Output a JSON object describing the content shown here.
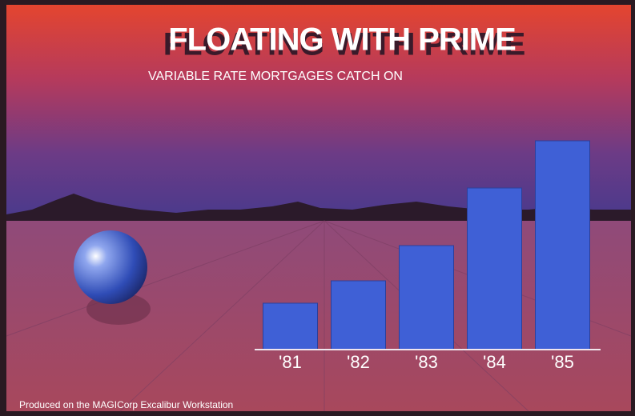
{
  "chart_data": {
    "type": "bar",
    "title": "FLOATING WITH PRIME",
    "subtitle": "VARIABLE RATE MORTGAGES CATCH ON",
    "footnote": "Produced on the MAGICorp Excalibur Workstation",
    "categories": [
      "'81",
      "'82",
      "'83",
      "'84",
      "'85"
    ],
    "values": [
      58,
      86,
      130,
      202,
      261
    ],
    "color": "#3f60d6",
    "ylim": [
      0,
      300
    ]
  }
}
